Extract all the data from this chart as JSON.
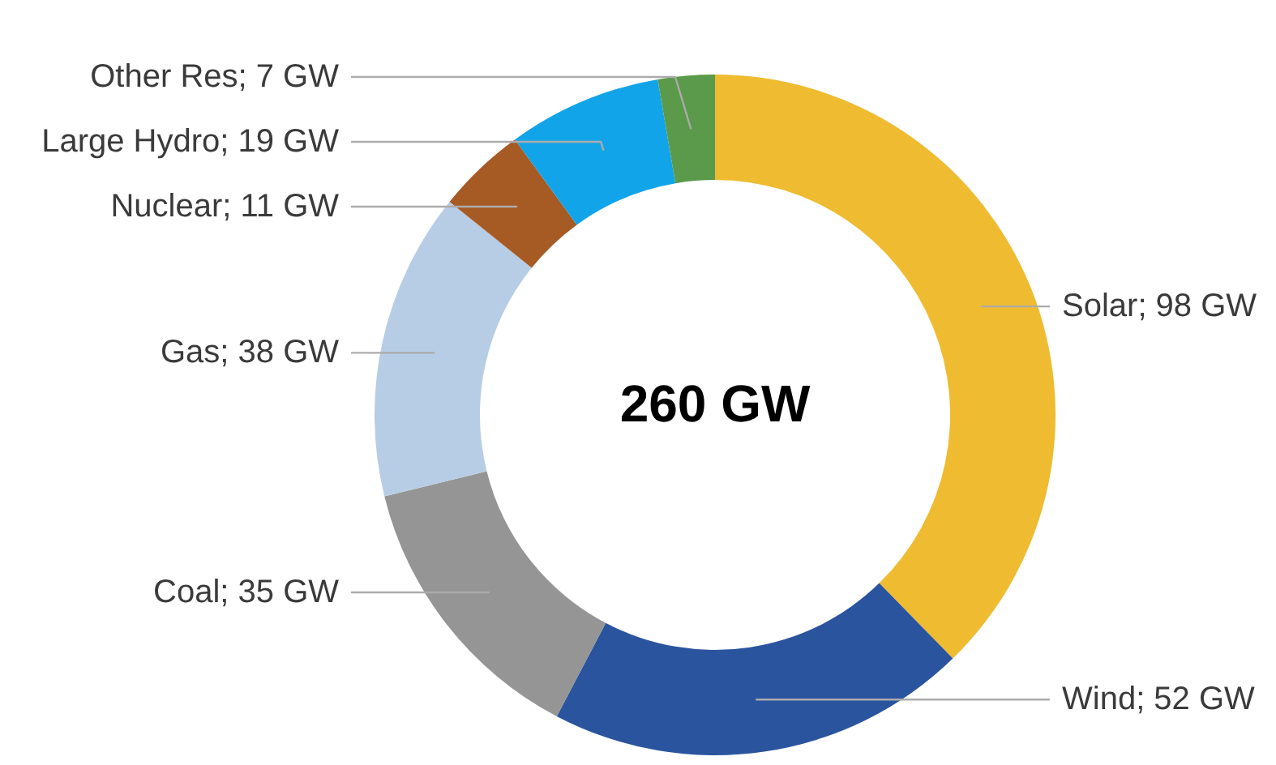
{
  "chart_data": {
    "type": "donut",
    "categories": [
      "Solar",
      "Wind",
      "Coal",
      "Gas",
      "Nuclear",
      "Large Hydro",
      "Other Res"
    ],
    "values": [
      98,
      52,
      35,
      38,
      11,
      19,
      7
    ],
    "colors": [
      "#efbb30",
      "#2a549e",
      "#959595",
      "#b7cde6",
      "#a65a24",
      "#12a4e8",
      "#5a9a4a"
    ],
    "value_labels": [
      "98 GW",
      "52 GW",
      "35 GW",
      "38 GW",
      "11 GW",
      "19 GW",
      "7 GW"
    ],
    "annotations": [
      "260 GW"
    ]
  }
}
